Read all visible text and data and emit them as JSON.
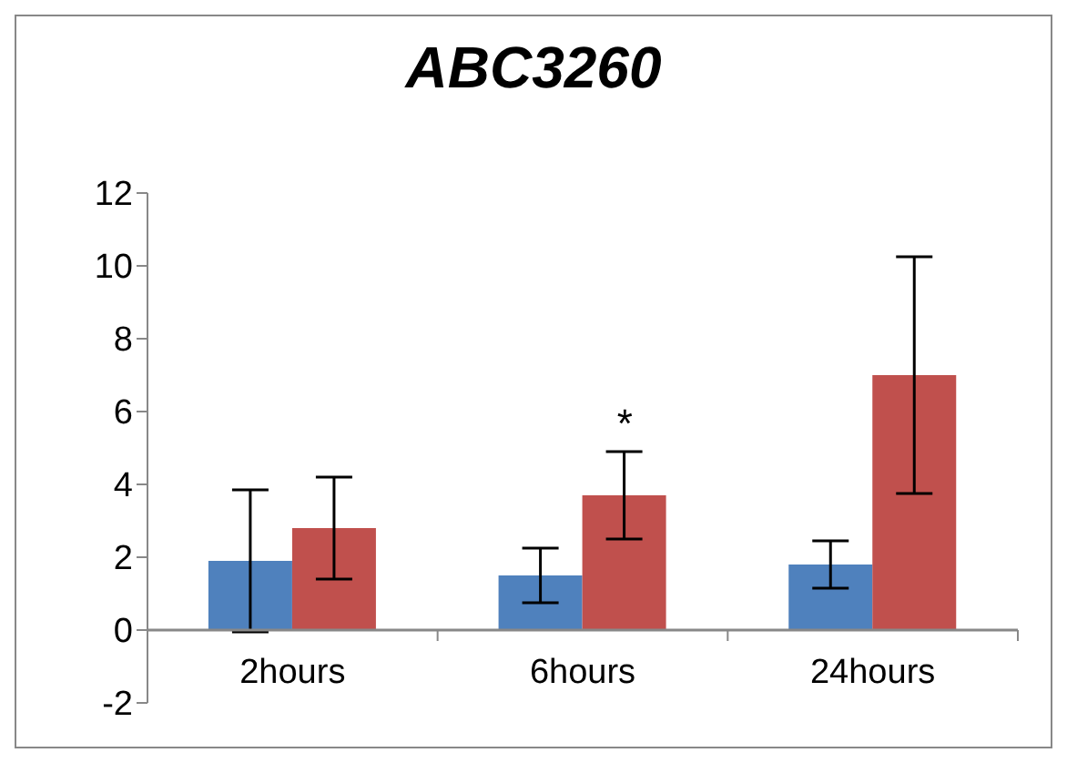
{
  "chart_data": {
    "type": "bar",
    "title": "ABC3260",
    "categories": [
      "2hours",
      "6hours",
      "24hours"
    ],
    "series": [
      {
        "color": "#4f81bd",
        "values": [
          1.9,
          1.5,
          1.8
        ],
        "errors": [
          1.95,
          0.75,
          0.65
        ]
      },
      {
        "color": "#c0504d",
        "values": [
          2.8,
          3.7,
          7.0
        ],
        "errors": [
          1.4,
          1.2,
          3.25
        ]
      }
    ],
    "ylim": [
      -2,
      12
    ],
    "yticks": [
      -2,
      0,
      2,
      4,
      6,
      8,
      10,
      12
    ],
    "grid": false,
    "legend": false,
    "annotations": [
      "*"
    ]
  }
}
